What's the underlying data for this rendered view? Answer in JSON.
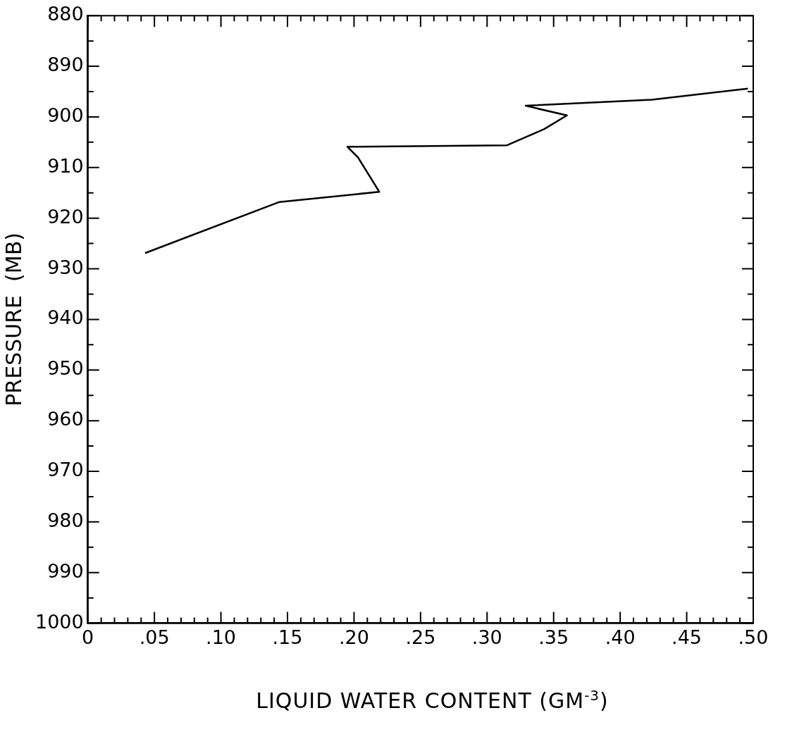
{
  "chart_data": {
    "type": "line",
    "xlabel": "LIQUID WATER CONTENT  (GM$^{-3}$)",
    "ylabel": "PRESSURE  (MB)",
    "x": [
      0.043,
      0.144,
      0.219,
      0.203,
      0.195,
      0.315,
      0.343,
      0.36,
      0.329,
      0.424,
      0.496
    ],
    "series": [
      {
        "color": "#000000",
        "values": [
          926.9,
          916.8,
          914.8,
          908.0,
          905.9,
          905.6,
          902.4,
          899.7,
          897.8,
          896.6,
          894.4
        ]
      }
    ],
    "xlim": [
      0,
      0.5
    ],
    "ylim": [
      1000,
      880
    ],
    "xticks": [
      {
        "value": 0,
        "label": "0"
      },
      {
        "value": 0.01,
        "label": null
      },
      {
        "value": 0.02,
        "label": null
      },
      {
        "value": 0.03,
        "label": null
      },
      {
        "value": 0.04,
        "label": null
      },
      {
        "value": 0.05,
        "label": ".05"
      },
      {
        "value": 0.06,
        "label": null
      },
      {
        "value": 0.07,
        "label": null
      },
      {
        "value": 0.08,
        "label": null
      },
      {
        "value": 0.09,
        "label": null
      },
      {
        "value": 0.1,
        "label": ".10"
      },
      {
        "value": 0.11,
        "label": null
      },
      {
        "value": 0.12,
        "label": null
      },
      {
        "value": 0.13,
        "label": null
      },
      {
        "value": 0.14,
        "label": null
      },
      {
        "value": 0.15,
        "label": ".15"
      },
      {
        "value": 0.16,
        "label": null
      },
      {
        "value": 0.17,
        "label": null
      },
      {
        "value": 0.18,
        "label": null
      },
      {
        "value": 0.19,
        "label": null
      },
      {
        "value": 0.2,
        "label": ".20"
      },
      {
        "value": 0.21,
        "label": null
      },
      {
        "value": 0.22,
        "label": null
      },
      {
        "value": 0.23,
        "label": null
      },
      {
        "value": 0.24,
        "label": null
      },
      {
        "value": 0.25,
        "label": ".25"
      },
      {
        "value": 0.26,
        "label": null
      },
      {
        "value": 0.27,
        "label": null
      },
      {
        "value": 0.28,
        "label": null
      },
      {
        "value": 0.29,
        "label": null
      },
      {
        "value": 0.3,
        "label": ".30"
      },
      {
        "value": 0.31,
        "label": null
      },
      {
        "value": 0.32,
        "label": null
      },
      {
        "value": 0.33,
        "label": null
      },
      {
        "value": 0.34,
        "label": null
      },
      {
        "value": 0.35,
        "label": ".35"
      },
      {
        "value": 0.36,
        "label": null
      },
      {
        "value": 0.37,
        "label": null
      },
      {
        "value": 0.38,
        "label": null
      },
      {
        "value": 0.39,
        "label": null
      },
      {
        "value": 0.4,
        "label": ".40"
      },
      {
        "value": 0.41,
        "label": null
      },
      {
        "value": 0.42,
        "label": null
      },
      {
        "value": 0.43,
        "label": null
      },
      {
        "value": 0.44,
        "label": null
      },
      {
        "value": 0.45,
        "label": ".45"
      },
      {
        "value": 0.46,
        "label": null
      },
      {
        "value": 0.47,
        "label": null
      },
      {
        "value": 0.48,
        "label": null
      },
      {
        "value": 0.49,
        "label": null
      },
      {
        "value": 0.5,
        "label": ".50"
      }
    ],
    "yticks": [
      880,
      {
        "value": 885,
        "label": null
      },
      890,
      {
        "value": 895,
        "label": null
      },
      900,
      {
        "value": 905,
        "label": null
      },
      910,
      {
        "value": 915,
        "label": null
      },
      920,
      {
        "value": 925,
        "label": null
      },
      930,
      {
        "value": 935,
        "label": null
      },
      940,
      {
        "value": 945,
        "label": null
      },
      950,
      {
        "value": 955,
        "label": null
      },
      960,
      {
        "value": 965,
        "label": null
      },
      970,
      {
        "value": 975,
        "label": null
      },
      980,
      {
        "value": 985,
        "label": null
      },
      990,
      {
        "value": 995,
        "label": null
      },
      1000
    ],
    "grid": false,
    "legend": false,
    "marker": "none",
    "line_style": "solid"
  }
}
